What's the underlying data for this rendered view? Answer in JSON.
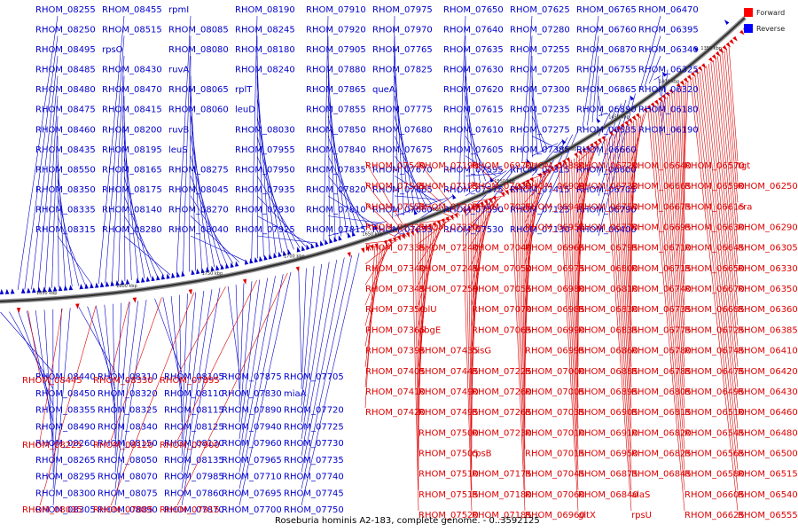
{
  "caption": "Roseburia hominis A2-183, complete genome. - 0..3592125",
  "legend": {
    "forward": {
      "label": "Forward",
      "color": "#ff0000"
    },
    "reverse": {
      "label": "Reverse",
      "color": "#0000ff"
    }
  },
  "colors": {
    "forward": "#dd0000",
    "reverse": "#0000cc"
  },
  "axis_ticks": [
    "1850 kbp",
    "1800 kbp",
    "1750 kbp",
    "1700 kbp",
    "1650 kbp",
    "1600 kbp",
    "1550 kbp",
    "1500 kbp",
    "1450 kbp",
    "1400 kbp",
    "1350 kbp"
  ],
  "reverse_labels_top": [
    "RHOM_08255",
    "RHOM_08250",
    "RHOM_08495",
    "RHOM_08485",
    "RHOM_08480",
    "RHOM_08475",
    "RHOM_08460",
    "RHOM_08435",
    "RHOM_08550",
    "RHOM_08350",
    "RHOM_08335",
    "RHOM_08315",
    "RHOM_08455",
    "RHOM_08515",
    "rpsO",
    "RHOM_08430",
    "RHOM_08470",
    "RHOM_08415",
    "RHOM_08200",
    "RHOM_08195",
    "RHOM_08165",
    "RHOM_08175",
    "RHOM_08140",
    "RHOM_08280",
    "rpmI",
    "RHOM_08085",
    "RHOM_08080",
    "ruvA",
    "RHOM_08065",
    "RHOM_08060",
    "ruvB",
    "leuS",
    "RHOM_08275",
    "RHOM_08045",
    "RHOM_08270",
    "RHOM_08040",
    "RHOM_08190",
    "RHOM_08245",
    "RHOM_08180",
    "RHOM_08240",
    "rplT",
    "leuD",
    "RHOM_08030",
    "RHOM_07955",
    "RHOM_07950",
    "RHOM_07935",
    "RHOM_07930",
    "RHOM_07925",
    "RHOM_07910",
    "RHOM_07920",
    "RHOM_07905",
    "RHOM_07880",
    "RHOM_07865",
    "RHOM_07855",
    "RHOM_07850",
    "RHOM_07840",
    "RHOM_07835",
    "RHOM_07820",
    "RHOM_07810",
    "RHOM_07815",
    "RHOM_07975",
    "RHOM_07970",
    "RHOM_07765",
    "RHOM_07825",
    "queA",
    "RHOM_07775",
    "RHOM_07680",
    "RHOM_07675",
    "RHOM_07670",
    "RHOM_07665",
    "RHOM_07660",
    "RHOM_07655",
    "RHOM_07650",
    "RHOM_07640",
    "RHOM_07635",
    "RHOM_07630",
    "RHOM_07620",
    "RHOM_07615",
    "RHOM_07610",
    "RHOM_07605",
    "RHOM_07595",
    "RHOM_07575",
    "RHOM_07590",
    "RHOM_07530",
    "RHOM_07625",
    "RHOM_07280",
    "RHOM_07255",
    "RHOM_07205",
    "RHOM_07300",
    "RHOM_07235",
    "RHOM_07275",
    "RHOM_07385",
    "RHOM_07315",
    "RHOM_07415",
    "RHOM_07125",
    "RHOM_07130",
    "RHOM_06765",
    "RHOM_06760",
    "RHOM_06870",
    "RHOM_06755",
    "RHOM_06865",
    "RHOM_06890",
    "RHOM_06535",
    "RHOM_06660",
    "RHOM_06600",
    "RHOM_06705",
    "RHOM_06790",
    "RHOM_06400",
    "RHOM_06470",
    "RHOM_06395",
    "RHOM_06340",
    "RHOM_06325",
    "RHOM_06320",
    "RHOM_06180",
    "RHOM_06190"
  ],
  "forward_labels_right": [
    "tgt",
    "RHOM_06250",
    "era",
    "RHOM_06290",
    "RHOM_06305",
    "RHOM_06330",
    "RHOM_06350",
    "RHOM_06360",
    "RHOM_06385",
    "RHOM_06410",
    "RHOM_06420",
    "RHOM_06430",
    "RHOM_06460",
    "RHOM_06480",
    "RHOM_06500",
    "RHOM_06515",
    "RHOM_06540",
    "RHOM_06555",
    "RHOM_06570",
    "RHOM_06590",
    "RHOM_06615",
    "RHOM_06630",
    "RHOM_06645",
    "RHOM_06650",
    "RHOM_06670",
    "RHOM_06685",
    "RHOM_06725",
    "RHOM_06745",
    "RHOM_06475",
    "RHOM_06495",
    "RHOM_06510",
    "RHOM_06545",
    "RHOM_06565",
    "RHOM_06580",
    "RHOM_06605",
    "RHOM_06625",
    "RHOM_06640",
    "RHOM_06665",
    "RHOM_06675",
    "RHOM_06695",
    "RHOM_06710",
    "RHOM_06715",
    "RHOM_06740",
    "RHOM_06735",
    "RHOM_06775",
    "RHOM_06780",
    "RHOM_06785",
    "RHOM_06805",
    "RHOM_06815",
    "RHOM_06820",
    "RHOM_06825",
    "RHOM_06845",
    "alaS",
    "rpsU",
    "RHOM_06720",
    "RHOM_06730",
    "RHOM_06750",
    "RHOM_06770",
    "RHOM_06795",
    "RHOM_06800",
    "RHOM_06810",
    "RHOM_06830",
    "RHOM_06835",
    "RHOM_06860",
    "RHOM_06885",
    "RHOM_06895",
    "RHOM_06905",
    "RHOM_06910",
    "RHOM_06950",
    "RHOM_06875",
    "RHOM_06840",
    "gltX",
    "RHOM_06880",
    "RHOM_06900",
    "RHOM_06945",
    "RHOM_06955",
    "RHOM_06965",
    "RHOM_06975",
    "RHOM_06980",
    "RHOM_06985",
    "RHOM_06990",
    "RHOM_06995",
    "RHOM_07000",
    "RHOM_07005",
    "RHOM_07035",
    "RHOM_07010",
    "RHOM_07015",
    "RHOM_07045",
    "RHOM_07060",
    "RHOM_06960",
    "RHOM_06970",
    "RHOM_07020",
    "RHOM_07025",
    "frr",
    "RHOM_07040",
    "RHOM_07050",
    "RHOM_07055",
    "RHOM_07070",
    "RHOM_07065",
    "hisG",
    "RHOM_07225",
    "RHOM_07260",
    "RHOM_07265",
    "RHOM_07230",
    "rpsB",
    "RHOM_07175",
    "RHOM_07180",
    "RHOM_07185",
    "RHOM_07190",
    "RHOM_07195",
    "RHOM_07200",
    "RHOM_07220",
    "RHOM_07240",
    "RHOM_07245",
    "RHOM_07250",
    "rplU",
    "obgE",
    "RHOM_07435",
    "RHOM_07445",
    "RHOM_07490",
    "RHOM_07495",
    "RHOM_07500",
    "RHOM_07505",
    "RHOM_07510",
    "RHOM_07515",
    "RHOM_07520",
    "RHOM_07540",
    "RHOM_07545",
    "RHOM_07555",
    "RHOM_07325",
    "RHOM_07335",
    "RHOM_07340",
    "RHOM_07345",
    "RHOM_07350",
    "RHOM_07365",
    "RHOM_07395",
    "RHOM_07405",
    "RHOM_07410",
    "RHOM_07420"
  ],
  "reverse_labels_bottom": [
    "RHOM_08440",
    "RHOM_08450",
    "RHOM_08355",
    "RHOM_08490",
    "RHOM_08260",
    "RHOM_08265",
    "RHOM_08295",
    "RHOM_08300",
    "RHOM_08305",
    "RHOM_08310",
    "RHOM_08320",
    "RHOM_08325",
    "RHOM_08340",
    "RHOM_08150",
    "RHOM_08050",
    "RHOM_08070",
    "RHOM_08075",
    "RHOM_08090",
    "RHOM_08105",
    "RHOM_08110",
    "RHOM_08115",
    "RHOM_08125",
    "RHOM_08130",
    "RHOM_08135",
    "RHOM_07985",
    "RHOM_07860",
    "RHOM_07870",
    "RHOM_07875",
    "RHOM_07830",
    "RHOM_07890",
    "RHOM_07940",
    "RHOM_07960",
    "RHOM_07965",
    "RHOM_07710",
    "RHOM_07695",
    "RHOM_07700",
    "RHOM_07705",
    "miaA",
    "RHOM_07720",
    "RHOM_07725",
    "RHOM_07730",
    "RHOM_07735",
    "RHOM_07740",
    "RHOM_07745",
    "RHOM_07750"
  ],
  "forward_labels_bottom_left": [
    "RHOM_08445",
    "RHOM_08225",
    "RHOM_08035",
    "RHOM_08330",
    "RHOM_08120",
    "RHOM_07885",
    "RHOM_07895",
    "RHOM_07900",
    "RHOM_07915"
  ]
}
